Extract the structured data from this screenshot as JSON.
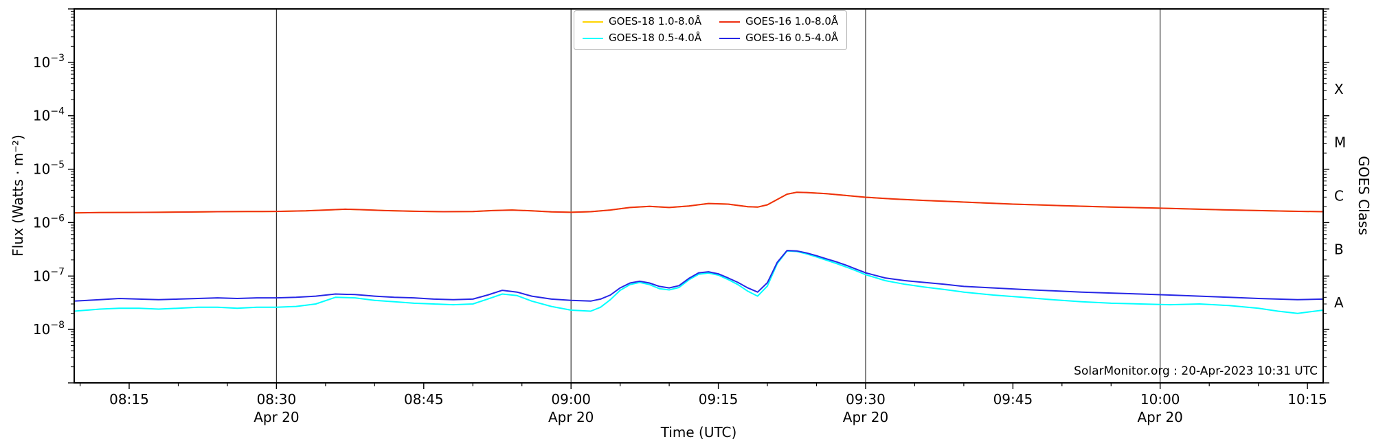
{
  "figure": {
    "credit": "SolarMonitor.org : 20-Apr-2023 10:31 UTC",
    "background": "#ffffff"
  },
  "chart_data": {
    "type": "line",
    "title": "",
    "xlabel": "Time (UTC)",
    "ylabel_left": "Flux (Watts · m⁻²)",
    "ylabel_right": "GOES Class",
    "x_unit": "minutes since 00:00 UTC, 20-Apr-2023",
    "xlim": [
      489.4,
      616.6
    ],
    "ylog": true,
    "ylim_exp": [
      -9,
      -2
    ],
    "ytick_exponents": [
      -3,
      -4,
      -5,
      -6,
      -7,
      -8
    ],
    "minor_xtick_step_min": 5,
    "grid_on": true,
    "grid_color": "#333333",
    "frame_color": "#000000",
    "text_color": "#000000",
    "xticks": [
      {
        "t": 495,
        "label": "08:15",
        "gridline": false
      },
      {
        "t": 510,
        "label": "08:30",
        "date": "Apr 20",
        "gridline": true
      },
      {
        "t": 525,
        "label": "08:45",
        "gridline": false
      },
      {
        "t": 540,
        "label": "09:00",
        "date": "Apr 20",
        "gridline": true
      },
      {
        "t": 555,
        "label": "09:15",
        "gridline": false
      },
      {
        "t": 570,
        "label": "09:30",
        "date": "Apr 20",
        "gridline": true
      },
      {
        "t": 585,
        "label": "09:45",
        "gridline": false
      },
      {
        "t": 600,
        "label": "10:00",
        "date": "Apr 20",
        "gridline": true
      },
      {
        "t": 615,
        "label": "10:15",
        "gridline": false
      }
    ],
    "goes_classes": [
      {
        "label": "X",
        "exp_center": -3.5
      },
      {
        "label": "M",
        "exp_center": -4.5
      },
      {
        "label": "C",
        "exp_center": -5.5
      },
      {
        "label": "B",
        "exp_center": -6.5
      },
      {
        "label": "A",
        "exp_center": -7.5
      }
    ],
    "legend": {
      "position": "top-center",
      "columns": 2,
      "order": [
        0,
        2,
        1,
        3
      ]
    },
    "series": [
      {
        "id": "goes18-long",
        "name": "GOES-18 1.0-8.0Å",
        "color": "#ffd400",
        "x": [
          489.4,
          492,
          495,
          498,
          501,
          504,
          507,
          510,
          513,
          515,
          517,
          519,
          521,
          524,
          527,
          530,
          532,
          534,
          536,
          538,
          540,
          542,
          544,
          546,
          548,
          550,
          552,
          554,
          556,
          558,
          559,
          560,
          561,
          562,
          563,
          564,
          566,
          568,
          570,
          573,
          576,
          580,
          585,
          590,
          595,
          600,
          605,
          610,
          613,
          616.6
        ],
        "y": [
          1.52e-06,
          1.54e-06,
          1.55e-06,
          1.56e-06,
          1.58e-06,
          1.6e-06,
          1.61e-06,
          1.62e-06,
          1.66e-06,
          1.72e-06,
          1.78e-06,
          1.74e-06,
          1.68e-06,
          1.63e-06,
          1.6e-06,
          1.61e-06,
          1.68e-06,
          1.72e-06,
          1.66e-06,
          1.59e-06,
          1.56e-06,
          1.6e-06,
          1.72e-06,
          1.92e-06,
          2.02e-06,
          1.92e-06,
          2.05e-06,
          2.28e-06,
          2.22e-06,
          1.98e-06,
          1.95e-06,
          2.15e-06,
          2.7e-06,
          3.4e-06,
          3.7e-06,
          3.66e-06,
          3.48e-06,
          3.22e-06,
          2.98e-06,
          2.76e-06,
          2.6e-06,
          2.42e-06,
          2.22e-06,
          2.08e-06,
          1.96e-06,
          1.86e-06,
          1.76e-06,
          1.68e-06,
          1.64e-06,
          1.6e-06
        ]
      },
      {
        "id": "goes18-short",
        "name": "GOES-18 0.5-4.0Å",
        "color": "#00ffff",
        "x": [
          489.4,
          492,
          494,
          496,
          498,
          500,
          502,
          504,
          506,
          508,
          510,
          512,
          514,
          516,
          518,
          520,
          522,
          524,
          526,
          528,
          530,
          531.5,
          533,
          534.5,
          536,
          538,
          540,
          542,
          543,
          544,
          545,
          546,
          547,
          548,
          549,
          550,
          551,
          552,
          553,
          554,
          555,
          556,
          557,
          558,
          559,
          560,
          561,
          562,
          563,
          564,
          565,
          566,
          567,
          568,
          569,
          570,
          572,
          574,
          576,
          578,
          580,
          583,
          586,
          589,
          592,
          595,
          598,
          601,
          604,
          607,
          610,
          612,
          614,
          616.6
        ],
        "y": [
          2.2e-08,
          2.4e-08,
          2.5e-08,
          2.5e-08,
          2.4e-08,
          2.5e-08,
          2.6e-08,
          2.6e-08,
          2.5e-08,
          2.6e-08,
          2.6e-08,
          2.7e-08,
          3e-08,
          4e-08,
          3.9e-08,
          3.5e-08,
          3.3e-08,
          3.1e-08,
          3e-08,
          2.9e-08,
          3e-08,
          3.7e-08,
          4.6e-08,
          4.3e-08,
          3.4e-08,
          2.7e-08,
          2.3e-08,
          2.2e-08,
          2.6e-08,
          3.6e-08,
          5.4e-08,
          6.9e-08,
          7.6e-08,
          6.9e-08,
          5.8e-08,
          5.5e-08,
          6.1e-08,
          8.5e-08,
          1.08e-07,
          1.14e-07,
          1.04e-07,
          8.6e-08,
          6.9e-08,
          5.2e-08,
          4.2e-08,
          6.5e-08,
          1.7e-07,
          2.95e-07,
          2.88e-07,
          2.6e-07,
          2.28e-07,
          1.98e-07,
          1.72e-07,
          1.48e-07,
          1.26e-07,
          1.06e-07,
          8.2e-08,
          7e-08,
          6.2e-08,
          5.6e-08,
          5e-08,
          4.4e-08,
          4e-08,
          3.6e-08,
          3.3e-08,
          3.1e-08,
          3e-08,
          2.9e-08,
          3e-08,
          2.8e-08,
          2.5e-08,
          2.2e-08,
          2e-08,
          2.3e-08
        ]
      },
      {
        "id": "goes16-long",
        "name": "GOES-16 1.0-8.0Å",
        "color": "#ee2e10",
        "x": [
          489.4,
          492,
          495,
          498,
          501,
          504,
          507,
          510,
          513,
          515,
          517,
          519,
          521,
          524,
          527,
          530,
          532,
          534,
          536,
          538,
          540,
          542,
          544,
          546,
          548,
          550,
          552,
          554,
          556,
          558,
          559,
          560,
          561,
          562,
          563,
          564,
          566,
          568,
          570,
          573,
          576,
          580,
          585,
          590,
          595,
          600,
          605,
          610,
          613,
          616.6
        ],
        "y": [
          1.52e-06,
          1.54e-06,
          1.55e-06,
          1.56e-06,
          1.58e-06,
          1.6e-06,
          1.61e-06,
          1.62e-06,
          1.66e-06,
          1.72e-06,
          1.78e-06,
          1.74e-06,
          1.68e-06,
          1.63e-06,
          1.6e-06,
          1.61e-06,
          1.68e-06,
          1.72e-06,
          1.66e-06,
          1.59e-06,
          1.56e-06,
          1.6e-06,
          1.72e-06,
          1.92e-06,
          2.02e-06,
          1.92e-06,
          2.05e-06,
          2.28e-06,
          2.22e-06,
          1.98e-06,
          1.95e-06,
          2.15e-06,
          2.7e-06,
          3.4e-06,
          3.7e-06,
          3.66e-06,
          3.48e-06,
          3.22e-06,
          2.98e-06,
          2.76e-06,
          2.6e-06,
          2.42e-06,
          2.22e-06,
          2.08e-06,
          1.96e-06,
          1.86e-06,
          1.76e-06,
          1.68e-06,
          1.64e-06,
          1.6e-06
        ]
      },
      {
        "id": "goes16-short",
        "name": "GOES-16 0.5-4.0Å",
        "color": "#2626e6",
        "x": [
          489.4,
          492,
          494,
          496,
          498,
          500,
          502,
          504,
          506,
          508,
          510,
          512,
          514,
          516,
          518,
          520,
          522,
          524,
          526,
          528,
          530,
          531.5,
          533,
          534.5,
          536,
          538,
          540,
          542,
          543,
          544,
          545,
          546,
          547,
          548,
          549,
          550,
          551,
          552,
          553,
          554,
          555,
          556,
          557,
          558,
          559,
          560,
          561,
          562,
          563,
          564,
          565,
          566,
          567,
          568,
          569,
          570,
          572,
          574,
          576,
          578,
          580,
          583,
          586,
          589,
          592,
          595,
          598,
          601,
          604,
          607,
          610,
          612,
          614,
          616.6
        ],
        "y": [
          3.4e-08,
          3.6e-08,
          3.8e-08,
          3.7e-08,
          3.6e-08,
          3.7e-08,
          3.8e-08,
          3.9e-08,
          3.8e-08,
          3.9e-08,
          3.9e-08,
          4e-08,
          4.2e-08,
          4.6e-08,
          4.5e-08,
          4.2e-08,
          4e-08,
          3.9e-08,
          3.7e-08,
          3.6e-08,
          3.7e-08,
          4.4e-08,
          5.4e-08,
          5e-08,
          4.2e-08,
          3.7e-08,
          3.5e-08,
          3.4e-08,
          3.7e-08,
          4.4e-08,
          6e-08,
          7.4e-08,
          8e-08,
          7.4e-08,
          6.4e-08,
          6e-08,
          6.6e-08,
          9e-08,
          1.15e-07,
          1.2e-07,
          1.1e-07,
          9.2e-08,
          7.6e-08,
          6e-08,
          5e-08,
          7.5e-08,
          1.8e-07,
          3e-07,
          2.95e-07,
          2.7e-07,
          2.4e-07,
          2.1e-07,
          1.85e-07,
          1.6e-07,
          1.35e-07,
          1.15e-07,
          9.2e-08,
          8.2e-08,
          7.6e-08,
          7e-08,
          6.4e-08,
          6e-08,
          5.6e-08,
          5.3e-08,
          5e-08,
          4.8e-08,
          4.6e-08,
          4.4e-08,
          4.2e-08,
          4e-08,
          3.8e-08,
          3.7e-08,
          3.6e-08,
          3.7e-08
        ]
      }
    ]
  }
}
